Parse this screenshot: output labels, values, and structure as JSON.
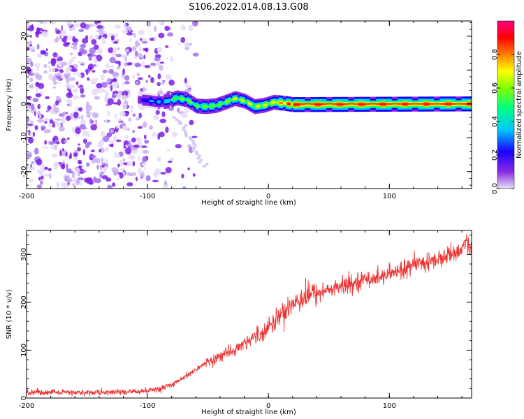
{
  "figure_title": "S106.2022.014.08.13.G08",
  "chart_data": [
    {
      "type": "heatmap",
      "title": "S106.2022.014.08.13.G08",
      "xlabel": "Height of straight line (km)",
      "ylabel": "Frequency (Hz)",
      "xlim": [
        -200,
        168
      ],
      "ylim": [
        -25,
        24.5
      ],
      "x_ticks": [
        -200,
        -100,
        0,
        100
      ],
      "x_tick_labels": [
        "-200",
        "-100",
        "0",
        "100"
      ],
      "y_ticks": [
        20,
        10,
        0,
        -10,
        -20
      ],
      "y_tick_labels": [
        "20",
        "10",
        "0",
        "-10",
        "-20"
      ],
      "colorbar": {
        "label": "Normalized spectral amplitude",
        "range": [
          0,
          1
        ],
        "ticks": [
          0.0,
          0.2,
          0.4,
          0.6,
          0.8
        ],
        "tick_labels": [
          "0.0",
          "0.2",
          "0.4",
          "0.6",
          "0.8"
        ],
        "colors": [
          "#e8e0f8",
          "#8a2be2",
          "#1a00ff",
          "#00c8ff",
          "#00ff80",
          "#80ff00",
          "#ffff00",
          "#ff8000",
          "#ff0000",
          "#ff0080"
        ]
      },
      "noise_region_x": [
        -200,
        -80
      ],
      "noise_amplitude": 0.15,
      "trace": [
        {
          "x": -108,
          "f": 1.2,
          "amp": 0.2
        },
        {
          "x": -100,
          "f": 1.0,
          "amp": 0.3
        },
        {
          "x": -92,
          "f": 0.6,
          "amp": 0.3
        },
        {
          "x": -84,
          "f": 0.8,
          "amp": 0.35
        },
        {
          "x": -76,
          "f": 1.8,
          "amp": 0.5
        },
        {
          "x": -68,
          "f": 1.2,
          "amp": 0.5
        },
        {
          "x": -60,
          "f": -0.6,
          "amp": 0.45
        },
        {
          "x": -52,
          "f": -0.8,
          "amp": 0.5
        },
        {
          "x": -44,
          "f": -0.5,
          "amp": 0.5
        },
        {
          "x": -36,
          "f": 0.5,
          "amp": 0.5
        },
        {
          "x": -28,
          "f": 1.6,
          "amp": 0.55
        },
        {
          "x": -20,
          "f": 0.8,
          "amp": 0.55
        },
        {
          "x": -12,
          "f": -0.8,
          "amp": 0.55
        },
        {
          "x": -4,
          "f": -0.4,
          "amp": 0.6
        },
        {
          "x": 4,
          "f": 0.5,
          "amp": 0.6
        },
        {
          "x": 12,
          "f": 0.2,
          "amp": 0.7
        },
        {
          "x": 20,
          "f": -0.2,
          "amp": 0.8
        },
        {
          "x": 168,
          "f": 0.0,
          "amp": 0.8
        }
      ]
    },
    {
      "type": "line",
      "xlabel": "Height of straight line (km)",
      "ylabel": "SNR (10 * v/v)",
      "xlim": [
        -200,
        168
      ],
      "ylim": [
        0,
        350
      ],
      "x_ticks": [
        -200,
        -100,
        0,
        100
      ],
      "x_tick_labels": [
        "-200",
        "-100",
        "0",
        "100"
      ],
      "y_ticks": [
        0,
        100,
        200,
        300
      ],
      "y_tick_labels": [
        "0",
        "100",
        "200",
        "300"
      ],
      "color": "#ee3333",
      "series": [
        {
          "name": "SNR",
          "x": [
            -200,
            -180,
            -160,
            -140,
            -120,
            -100,
            -90,
            -80,
            -70,
            -60,
            -50,
            -40,
            -30,
            -20,
            -10,
            0,
            10,
            20,
            30,
            40,
            50,
            60,
            70,
            80,
            90,
            100,
            110,
            120,
            130,
            140,
            150,
            160,
            164,
            168
          ],
          "y": [
            13,
            12,
            11,
            12,
            12,
            15,
            18,
            27,
            42,
            60,
            75,
            88,
            100,
            115,
            130,
            148,
            175,
            198,
            212,
            220,
            226,
            233,
            240,
            248,
            252,
            258,
            268,
            276,
            283,
            290,
            300,
            310,
            330,
            305
          ]
        }
      ]
    }
  ]
}
